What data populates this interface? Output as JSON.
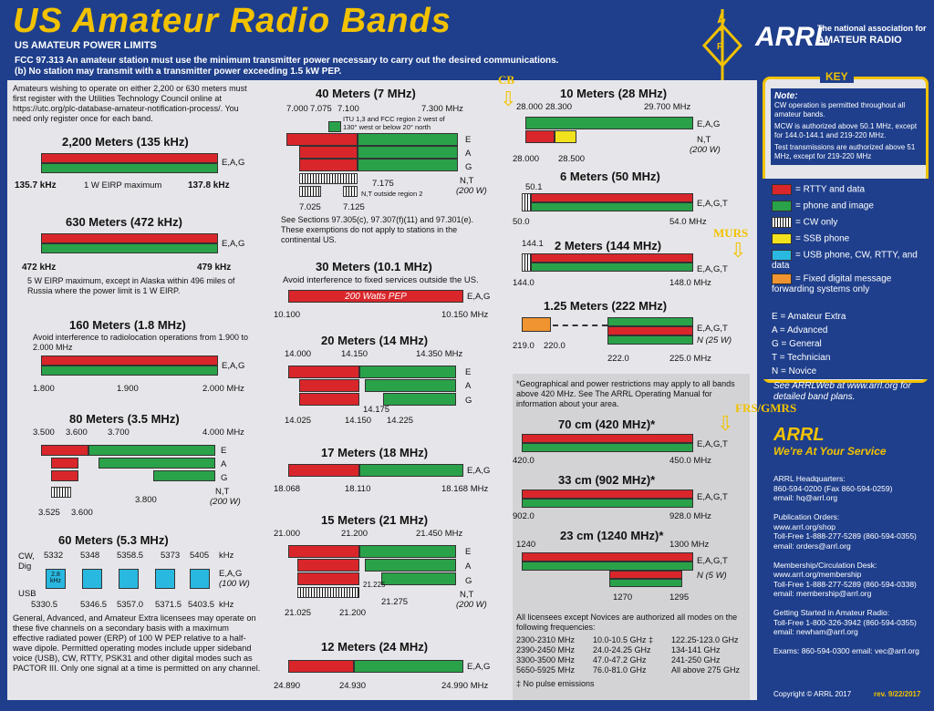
{
  "header": {
    "title": "US Amateur Radio Bands",
    "subtitle": "US AMATEUR POWER LIMITS",
    "fcc1": "FCC 97.313   An amateur station must use the minimum transmitter power necessary to carry out the desired communications.",
    "fcc2": "(b) No station may transmit with a transmitter power exceeding 1.5 kW PEP.",
    "arrl": "ARRL",
    "tag1": "The national association for",
    "tag2": "AMATEUR RADIO"
  },
  "intro": "Amateurs wishing to operate on either 2,200 or 630 meters must first register with the Utilities Technology Council online at https://utc.org/plc-database-amateur-notification-process/. You need only register once for each band.",
  "b2200": {
    "title": "2,200 Meters (135 kHz)",
    "lo": "135.7 kHz",
    "hi": "137.8 kHz",
    "mid": "1 W EIRP maximum",
    "cls": "E,A,G"
  },
  "b630": {
    "title": "630 Meters (472 kHz)",
    "lo": "472 kHz",
    "hi": "479 kHz",
    "cls": "E,A,G",
    "note": "5 W EIRP maximum, except in Alaska within 496 miles of Russia where the power limit is 1 W EIRP."
  },
  "b160": {
    "title": "160 Meters (1.8 MHz)",
    "note": "Avoid interference to radiolocation operations from 1.900 to 2.000 MHz",
    "cls": "E,A,G",
    "a": "1.800",
    "b": "1.900",
    "c": "2.000  MHz"
  },
  "b80": {
    "title": "80 Meters (3.5 MHz)",
    "a": "3.500",
    "b": "3.600",
    "c": "3.700",
    "d": "4.000 MHz",
    "e": "3.800",
    "f": "3.525",
    "h": "3.600",
    "E": "E",
    "A": "A",
    "G": "G",
    "NT": "N,T",
    "p": "(200 W)"
  },
  "b60": {
    "title": "60 Meters (5.3 MHz)",
    "cw": "CW,",
    "dig": "Dig",
    "usb": "USB",
    "f1": "5332",
    "f2": "5348",
    "f3": "5358.5",
    "f4": "5373",
    "f5": "5405",
    "khz": "kHz",
    "l1": "5330.5",
    "l2": "5346.5",
    "l3": "5357.0",
    "l4": "5371.5",
    "l5": "5403.5",
    "khz2": "kHz",
    "box": "2.8 kHz",
    "cls": "E,A,G",
    "p": "(100 W)",
    "note": "General, Advanced, and Amateur Extra licensees may operate on these five channels on a secondary basis with a maximum effective radiated power (ERP) of 100 W PEP relative to a half-wave dipole. Permitted operating modes include upper sideband voice (USB), CW, RTTY, PSK31 and other digital modes such as PACTOR III. Only one signal at a time is permitted on any channel."
  },
  "b40": {
    "title": "40 Meters (7 MHz)",
    "a": "7.000",
    "b": "7.075",
    "c": "7.100",
    "d": "7.300 MHz",
    "itu": "ITU 1,3 and FCC region 2 west of 130° west or below 20° north",
    "E": "E",
    "A": "A",
    "G": "G",
    "NT": "N,T",
    "p": "(200 W)",
    "e": "7.175",
    "f": "7.025",
    "h": "7.125",
    "nt2": "N,T outside region 2",
    "note": "See Sections 97.305(c), 97.307(f)(11) and 97.301(e). These exemptions do not apply to stations in the continental US."
  },
  "b30": {
    "title": "30 Meters (10.1 MHz)",
    "note": "Avoid interference to fixed services outside the US.",
    "bar": "200 Watts PEP",
    "cls": "E,A,G",
    "a": "10.100",
    "b": "10.150 MHz"
  },
  "b20": {
    "title": "20 Meters (14 MHz)",
    "a": "14.000",
    "b": "14.150",
    "c": "14.350 MHz",
    "E": "E",
    "A": "A",
    "G": "G",
    "d": "14.175",
    "e": "14.025",
    "f": "14.150",
    "h": "14.225"
  },
  "b17": {
    "title": "17 Meters (18 MHz)",
    "cls": "E,A,G",
    "a": "18.068",
    "b": "18.110",
    "c": "18.168 MHz"
  },
  "b15": {
    "title": "15 Meters (21 MHz)",
    "a": "21.000",
    "b": "21.200",
    "c": "21.450 MHz",
    "E": "E",
    "A": "A",
    "G": "G",
    "NT": "N,T",
    "p": "(200 W)",
    "d": "21.225",
    "e": "21.275",
    "f": "21.025",
    "h": "21.200"
  },
  "b12": {
    "title": "12 Meters (24 MHz)",
    "cls": "E,A,G",
    "a": "24.890",
    "b": "24.930",
    "c": "24.990 MHz"
  },
  "b10": {
    "title": "10 Meters (28 MHz)",
    "a": "28.000",
    "b": "28.300",
    "c": "29.700 MHz",
    "cls": "E,A,G",
    "NT": "N,T",
    "p": "(200 W)",
    "d": "28.000",
    "e": "28.500"
  },
  "b6": {
    "title": "6 Meters (50 MHz)",
    "a": "50.1",
    "b": "50.0",
    "c": "54.0  MHz",
    "cls": "E,A,G,T"
  },
  "b2": {
    "title": "2 Meters (144 MHz)",
    "a": "144.1",
    "b": "144.0",
    "c": "148.0  MHz",
    "cls": "E,A,G,T"
  },
  "b125": {
    "title": "1.25 Meters (222 MHz)",
    "cls": "E,A,G,T",
    "n": "N (25 W)",
    "a": "219.0",
    "b": "220.0",
    "c": "222.0",
    "d": "225.0 MHz"
  },
  "geo": "*Geographical and power restrictions may apply to all bands above 420 MHz. See The ARRL Operating Manual for information about your area.",
  "b70": {
    "title": "70 cm (420 MHz)*",
    "cls": "E,A,G,T",
    "a": "420.0",
    "b": "450.0  MHz"
  },
  "b33": {
    "title": "33 cm (902 MHz)*",
    "cls": "E,A,G,T",
    "a": "902.0",
    "b": "928.0  MHz"
  },
  "b23": {
    "title": "23 cm (1240 MHz)*",
    "cls": "E,A,G,T",
    "n": "N (5 W)",
    "a": "1240",
    "b": "1300  MHz",
    "c": "1270",
    "d": "1295"
  },
  "high": {
    "note": "All licensees except Novices are authorized all modes on the following frequencies:",
    "c1": [
      "2300-2310 MHz",
      "2390-2450 MHz",
      "3300-3500 MHz",
      "5650-5925 MHz"
    ],
    "c2": [
      "10.0-10.5 GHz ‡",
      "24.0-24.25 GHz",
      "47.0-47.2 GHz",
      "76.0-81.0 GHz"
    ],
    "c3": [
      "122.25-123.0 GHz",
      "134-141 GHz",
      "241-250 GHz",
      "All above 275 GHz"
    ],
    "foot": "‡ No pulse emissions"
  },
  "overlay": {
    "cb": "CB",
    "murs": "MURS",
    "frs": "FRS/GMRS"
  },
  "key": {
    "hdr": "KEY",
    "note": "Note:",
    "n1": "CW operation is permitted throughout all amateur bands.",
    "n2": "MCW is authorized above 50.1 MHz, except for 144.0-144.1 and 219-220 MHz.",
    "n3": "Test transmissions are authorized above 51 MHz, except for 219-220 MHz",
    "items": [
      "= RTTY and data",
      "= phone and image",
      "= CW only",
      "= SSB phone",
      "= USB phone, CW, RTTY, and data",
      "= Fixed digital message forwarding systems only"
    ],
    "cls": [
      "E = Amateur Extra",
      "A = Advanced",
      "G = General",
      "T = Technician",
      "N = Novice"
    ],
    "web": "See ARRLWeb at www.arrl.org for detailed band plans."
  },
  "service": {
    "title": "ARRL",
    "sub": "We're At Your Service",
    "lines": [
      "ARRL Headquarters:",
      "860-594-0200  (Fax 860-594-0259)",
      "email:  hq@arrl.org",
      "",
      "Publication Orders:",
      "www.arrl.org/shop",
      "Toll-Free 1-888-277-5289 (860-594-0355)",
      "email: orders@arrl.org",
      "",
      "Membership/Circulation Desk:",
      "www.arrl.org/membership",
      "Toll-Free 1-888-277-5289 (860-594-0338)",
      "email: membership@arrl.org",
      "",
      "Getting Started in Amateur Radio:",
      "Toll-Free 1-800-326-3942 (860-594-0355)",
      "email: newham@arrl.org",
      "",
      "Exams:  860-594-0300   email: vec@arrl.org"
    ],
    "copy": "Copyright © ARRL 2017",
    "rev": "rev. 9/22/2017"
  }
}
